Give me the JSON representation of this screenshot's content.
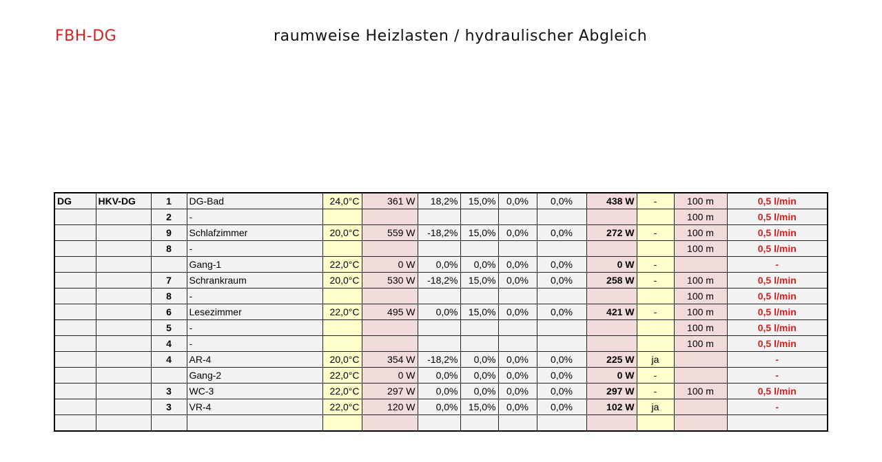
{
  "header": {
    "code": "FBH-DG",
    "title": "raumweise Heizlasten / hydraulischer Abgleich"
  },
  "colors": {
    "title_red": "#d42020",
    "temp_bg": "#ffffcc",
    "load_bg": "#f2dcdb",
    "flow_red": "#cc2222"
  },
  "rows": [
    {
      "floor": "DG",
      "hkv": "HKV-DG",
      "nr": "1",
      "room": "DG-Bad",
      "temp": "24,0°C",
      "load": "361 W",
      "p1": "18,2%",
      "p2": "15,0%",
      "p3": "0,0%",
      "p4": "0,0%",
      "total": "438 W",
      "flag": "-",
      "len": "100 m",
      "flow": "0,5 l/min"
    },
    {
      "floor": "",
      "hkv": "",
      "nr": "2",
      "room": "-",
      "temp": "",
      "load": "",
      "p1": "",
      "p2": "",
      "p3": "",
      "p4": "",
      "total": "",
      "flag": "",
      "len": "100 m",
      "flow": "0,5 l/min"
    },
    {
      "floor": "",
      "hkv": "",
      "nr": "9",
      "room": "Schlafzimmer",
      "temp": "20,0°C",
      "load": "559 W",
      "p1": "-18,2%",
      "p2": "15,0%",
      "p3": "0,0%",
      "p4": "0,0%",
      "total": "272 W",
      "flag": "-",
      "len": "100 m",
      "flow": "0,5 l/min"
    },
    {
      "floor": "",
      "hkv": "",
      "nr": "8",
      "room": "-",
      "temp": "",
      "load": "",
      "p1": "",
      "p2": "",
      "p3": "",
      "p4": "",
      "total": "",
      "flag": "",
      "len": "100 m",
      "flow": "0,5 l/min"
    },
    {
      "floor": "",
      "hkv": "",
      "nr": "",
      "room": "Gang-1",
      "temp": "22,0°C",
      "load": "0 W",
      "p1": "0,0%",
      "p2": "0,0%",
      "p3": "0,0%",
      "p4": "0,0%",
      "total": "0 W",
      "flag": "-",
      "len": "",
      "flow": "-"
    },
    {
      "floor": "",
      "hkv": "",
      "nr": "7",
      "room": "Schrankraum",
      "temp": "20,0°C",
      "load": "530 W",
      "p1": "-18,2%",
      "p2": "15,0%",
      "p3": "0,0%",
      "p4": "0,0%",
      "total": "258 W",
      "flag": "-",
      "len": "100 m",
      "flow": "0,5 l/min"
    },
    {
      "floor": "",
      "hkv": "",
      "nr": "8",
      "room": "-",
      "temp": "",
      "load": "",
      "p1": "",
      "p2": "",
      "p3": "",
      "p4": "",
      "total": "",
      "flag": "",
      "len": "100 m",
      "flow": "0,5 l/min"
    },
    {
      "floor": "",
      "hkv": "",
      "nr": "6",
      "room": "Lesezimmer",
      "temp": "22,0°C",
      "load": "495 W",
      "p1": "0,0%",
      "p2": "15,0%",
      "p3": "0,0%",
      "p4": "0,0%",
      "total": "421 W",
      "flag": "-",
      "len": "100 m",
      "flow": "0,5 l/min"
    },
    {
      "floor": "",
      "hkv": "",
      "nr": "5",
      "room": "-",
      "temp": "",
      "load": "",
      "p1": "",
      "p2": "",
      "p3": "",
      "p4": "",
      "total": "",
      "flag": "",
      "len": "100 m",
      "flow": "0,5 l/min"
    },
    {
      "floor": "",
      "hkv": "",
      "nr": "4",
      "room": "-",
      "temp": "",
      "load": "",
      "p1": "",
      "p2": "",
      "p3": "",
      "p4": "",
      "total": "",
      "flag": "",
      "len": "100 m",
      "flow": "0,5 l/min"
    },
    {
      "floor": "",
      "hkv": "",
      "nr": "4",
      "room": "AR-4",
      "temp": "20,0°C",
      "load": "354 W",
      "p1": "-18,2%",
      "p2": "0,0%",
      "p3": "0,0%",
      "p4": "0,0%",
      "total": "225 W",
      "flag": "ja",
      "len": "",
      "flow": "-"
    },
    {
      "floor": "",
      "hkv": "",
      "nr": "",
      "room": "Gang-2",
      "temp": "22,0°C",
      "load": "0 W",
      "p1": "0,0%",
      "p2": "0,0%",
      "p3": "0,0%",
      "p4": "0,0%",
      "total": "0 W",
      "flag": "-",
      "len": "",
      "flow": "-"
    },
    {
      "floor": "",
      "hkv": "",
      "nr": "3",
      "room": "WC-3",
      "temp": "22,0°C",
      "load": "297 W",
      "p1": "0,0%",
      "p2": "0,0%",
      "p3": "0,0%",
      "p4": "0,0%",
      "total": "297 W",
      "flag": "-",
      "len": "100 m",
      "flow": "0,5 l/min"
    },
    {
      "floor": "",
      "hkv": "",
      "nr": "3",
      "room": "VR-4",
      "temp": "22,0°C",
      "load": "120 W",
      "p1": "0,0%",
      "p2": "15,0%",
      "p3": "0,0%",
      "p4": "0,0%",
      "total": "102 W",
      "flag": "ja",
      "len": "",
      "flow": "-"
    },
    {
      "floor": "",
      "hkv": "",
      "nr": "",
      "room": "",
      "temp": "",
      "load": "",
      "p1": "",
      "p2": "",
      "p3": "",
      "p4": "",
      "total": "",
      "flag": "",
      "len": "",
      "flow": ""
    }
  ]
}
